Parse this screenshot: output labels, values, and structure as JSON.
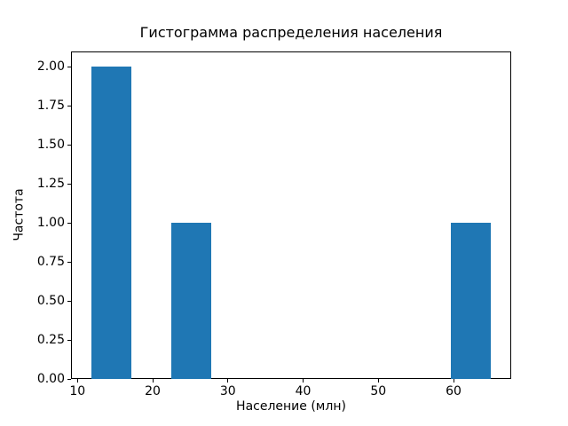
{
  "chart_data": {
    "type": "bar",
    "kind": "histogram",
    "title": "Гистограмма распределения населения",
    "xlabel": "Население (млн)",
    "ylabel": "Частота",
    "bin_edges": [
      11.8,
      17.12,
      22.44,
      27.76,
      33.08,
      38.4,
      43.72,
      49.04,
      54.36,
      59.68,
      65.0
    ],
    "counts": [
      2,
      0,
      1,
      0,
      0,
      0,
      0,
      0,
      0,
      1
    ],
    "xticks": [
      "10",
      "20",
      "30",
      "40",
      "50",
      "60"
    ],
    "yticks": [
      "0.00",
      "0.25",
      "0.50",
      "0.75",
      "1.00",
      "1.25",
      "1.50",
      "1.75",
      "2.00"
    ],
    "xlim": [
      9.14,
      67.66
    ],
    "ylim": [
      0,
      2.1
    ],
    "bar_color": "#1f77b4",
    "grid": false,
    "legend": null
  }
}
